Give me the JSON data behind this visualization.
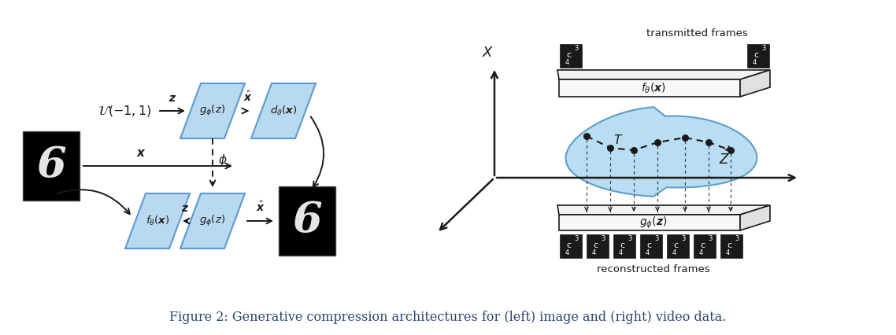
{
  "fig_width": 11.38,
  "fig_height": 4.26,
  "bg_color": "#ffffff",
  "box_fill": "#b8d9f0",
  "box_edge": "#5b9bd5",
  "black": "#1a1a1a",
  "caption": "Figure 2: Generative compression architectures for (left) image and (right) video data.",
  "caption_fontsize": 11.5,
  "caption_color": "#2c4770"
}
